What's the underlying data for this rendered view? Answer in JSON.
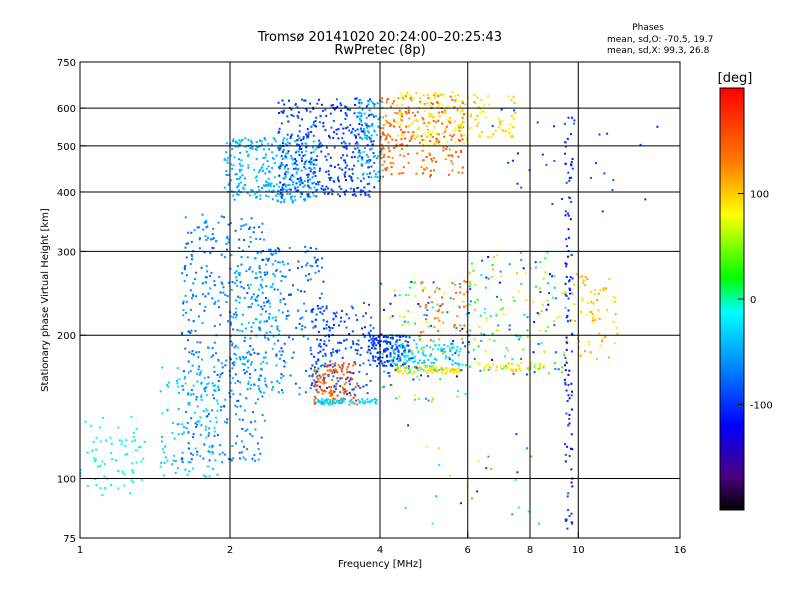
{
  "chart_data": {
    "type": "scatter",
    "title": "Tromsø 20141020 20:24:00–20:25:43",
    "subtitle": "RwPretec (8p)",
    "phases": {
      "heading": "Phases",
      "line1": "mean, sd,O: -70.5, 19.7",
      "line2": "mean, sd,X:  99.3, 26.8"
    },
    "xlabel": "Frequency [MHz]",
    "ylabel": "Stationary phase Virtual Height [km]",
    "x_scale": "log",
    "y_scale": "log",
    "xlim": [
      1,
      16
    ],
    "ylim": [
      75,
      750
    ],
    "x_ticks": [
      1,
      2,
      4,
      6,
      8,
      10,
      16
    ],
    "y_ticks": [
      75,
      100,
      200,
      300,
      400,
      500,
      600,
      750
    ],
    "x_gridlines": [
      2,
      4,
      6,
      8,
      10
    ],
    "y_gridlines": [
      100,
      200,
      300,
      400,
      500,
      600
    ],
    "grid": true,
    "colorbar": {
      "label": "[deg]",
      "range": [
        -200,
        200
      ],
      "ticks": [
        100,
        0,
        -100
      ]
    },
    "clusters": [
      {
        "f": [
          1.0,
          1.35
        ],
        "h": [
          92,
          135
        ],
        "phase": [
          -20,
          0
        ],
        "n": 70
      },
      {
        "f": [
          1.45,
          1.9
        ],
        "h": [
          100,
          175
        ],
        "phase": [
          -40,
          -20
        ],
        "n": 110
      },
      {
        "f": [
          1.6,
          2.35
        ],
        "h": [
          108,
          360
        ],
        "phase": [
          -85,
          -45
        ],
        "n": 420
      },
      {
        "f": [
          2.0,
          2.6
        ],
        "h": [
          150,
          300
        ],
        "phase": [
          -60,
          -30
        ],
        "n": 140
      },
      {
        "f": [
          2.3,
          3.1
        ],
        "h": [
          150,
          310
        ],
        "phase": [
          -95,
          -55
        ],
        "n": 140
      },
      {
        "f": [
          1.95,
          3.0
        ],
        "h": [
          380,
          520
        ],
        "phase": [
          -55,
          -30
        ],
        "n": 300
      },
      {
        "f": [
          2.5,
          3.9
        ],
        "h": [
          390,
          630
        ],
        "phase": [
          -110,
          -75
        ],
        "n": 380
      },
      {
        "f": [
          3.6,
          4.05
        ],
        "h": [
          420,
          630
        ],
        "phase": [
          -55,
          -30
        ],
        "n": 90
      },
      {
        "f": [
          4.0,
          5.9
        ],
        "h": [
          430,
          640
        ],
        "phase": [
          120,
          160
        ],
        "n": 220
      },
      {
        "f": [
          4.3,
          6.0
        ],
        "h": [
          500,
          650
        ],
        "phase": [
          70,
          100
        ],
        "n": 120
      },
      {
        "f": [
          6.0,
          7.5
        ],
        "h": [
          520,
          640
        ],
        "phase": [
          80,
          110
        ],
        "n": 60
      },
      {
        "f": [
          2.9,
          3.9
        ],
        "h": [
          150,
          235
        ],
        "phase": [
          -110,
          -70
        ],
        "n": 180
      },
      {
        "f": [
          2.95,
          3.6
        ],
        "h": [
          143,
          175
        ],
        "phase": [
          120,
          175
        ],
        "n": 120
      },
      {
        "f": [
          2.95,
          3.95
        ],
        "h": [
          143,
          147
        ],
        "phase": [
          -40,
          -20
        ],
        "n": 70
      },
      {
        "f": [
          3.8,
          4.6
        ],
        "h": [
          172,
          200
        ],
        "phase": [
          -105,
          -85
        ],
        "n": 130
      },
      {
        "f": [
          4.2,
          5.8
        ],
        "h": [
          168,
          192
        ],
        "phase": [
          -40,
          -20
        ],
        "n": 120
      },
      {
        "f": [
          4.3,
          5.8
        ],
        "h": [
          166,
          172
        ],
        "phase": [
          80,
          100
        ],
        "n": 70
      },
      {
        "f": [
          4.8,
          6.0
        ],
        "h": [
          195,
          260
        ],
        "phase": [
          110,
          160
        ],
        "n": 50
      },
      {
        "f": [
          4.0,
          6.0
        ],
        "h": [
          145,
          260
        ],
        "phase": [
          -120,
          110
        ],
        "n": 120
      },
      {
        "f": [
          6.0,
          9.5
        ],
        "h": [
          165,
          300
        ],
        "phase": [
          -120,
          110
        ],
        "n": 160
      },
      {
        "f": [
          6.3,
          8.6
        ],
        "h": [
          168,
          175
        ],
        "phase": [
          70,
          100
        ],
        "n": 50
      },
      {
        "f": [
          9.4,
          9.75
        ],
        "h": [
          78,
          600
        ],
        "phase": [
          -130,
          -80
        ],
        "n": 110
      },
      {
        "f": [
          9.7,
          12.0
        ],
        "h": [
          175,
          270
        ],
        "phase": [
          80,
          120
        ],
        "n": 70
      },
      {
        "f": [
          6.5,
          14.5
        ],
        "h": [
          360,
          600
        ],
        "phase": [
          -110,
          -70
        ],
        "n": 30
      },
      {
        "f": [
          4.5,
          9.0
        ],
        "h": [
          80,
          140
        ],
        "phase": [
          -120,
          150
        ],
        "n": 25
      }
    ]
  }
}
